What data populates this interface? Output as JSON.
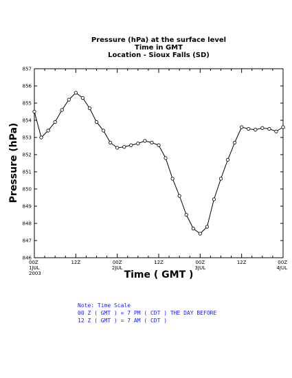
{
  "titles": [
    "Pressure (hPa) at the surface level",
    "Time in GMT",
    "Location - Sioux Falls (SD)"
  ],
  "notes": [
    "Note: Time Scale",
    "00 Z ( GMT ) = 7 PM ( CDT ) THE DAY BEFORE",
    "12 Z ( GMT ) = 7 AM ( CDT )"
  ],
  "chart_data": {
    "type": "line",
    "title": "Pressure (hPa) at the surface level",
    "subtitle": [
      "Time in GMT",
      "Location - Sioux Falls (SD)"
    ],
    "xlabel": "Time ( GMT )",
    "ylabel": "Pressure (hPa)",
    "ylim": [
      846,
      857
    ],
    "xlim": [
      0,
      72
    ],
    "y_ticks": [
      846,
      847,
      848,
      849,
      850,
      851,
      852,
      853,
      854,
      855,
      856,
      857
    ],
    "x_ticks": [
      {
        "x": 0,
        "lines": [
          "00Z",
          "1JUL",
          "2003"
        ]
      },
      {
        "x": 12,
        "lines": [
          "12Z"
        ]
      },
      {
        "x": 24,
        "lines": [
          "00Z",
          "2JUL"
        ]
      },
      {
        "x": 36,
        "lines": [
          "12Z"
        ]
      },
      {
        "x": 48,
        "lines": [
          "00Z",
          "3JUL"
        ]
      },
      {
        "x": 60,
        "lines": [
          "12Z"
        ]
      },
      {
        "x": 72,
        "lines": [
          "00Z",
          "4JUL"
        ]
      }
    ],
    "x_minor_step": 3,
    "grid": false,
    "series": [
      {
        "x": [
          0,
          2,
          4,
          6,
          8,
          10,
          12,
          14,
          16,
          18,
          20,
          22,
          24,
          26,
          28,
          30,
          32,
          34,
          36,
          38,
          40,
          42,
          44,
          46,
          48,
          50,
          52,
          54,
          56,
          58,
          60,
          62,
          64,
          66,
          68,
          70,
          72
        ],
        "y": [
          854.5,
          853.0,
          853.4,
          853.9,
          854.6,
          855.2,
          855.6,
          855.3,
          854.7,
          853.9,
          853.4,
          852.7,
          852.4,
          852.45,
          852.55,
          852.65,
          852.8,
          852.7,
          852.55,
          851.8,
          850.6,
          849.6,
          848.5,
          847.7,
          847.4,
          847.8,
          849.4,
          850.6,
          851.7,
          852.7,
          853.6,
          853.5,
          853.45,
          853.55,
          853.5,
          853.35,
          853.6
        ],
        "color": "#000000",
        "markers": "open-circle"
      }
    ]
  }
}
